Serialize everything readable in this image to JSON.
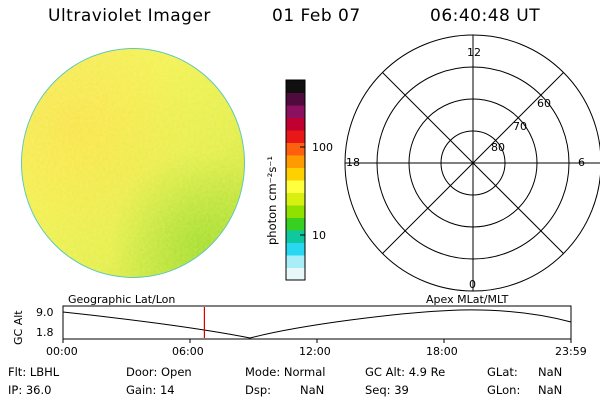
{
  "header": {
    "title": "Ultraviolet Imager",
    "date": "01 Feb 07",
    "time": "06:40:48 UT"
  },
  "colorbar": {
    "label": "photon cm⁻²s⁻¹",
    "tick_100": "100",
    "tick_10": "10",
    "colors": [
      "#101010",
      "#500a3c",
      "#8c1060",
      "#c00030",
      "#e81818",
      "#ff6010",
      "#ff9a00",
      "#ffd000",
      "#ffff40",
      "#d8f010",
      "#90e000",
      "#38d020",
      "#10c8a0",
      "#28d8f0",
      "#a8eef8",
      "#e8f8fa"
    ]
  },
  "polar_plot": {
    "mlt_labels": {
      "top": "12",
      "bottom": "0",
      "left": "18",
      "right": "6"
    },
    "lat_labels": {
      "outer": "60",
      "mid": "70",
      "inner": "80"
    }
  },
  "image_labels": {
    "left": "Geographic Lat/Lon",
    "right": "Apex MLat/MLT"
  },
  "altitude_plot": {
    "ylabel": "GC Alt",
    "ytick_top": "9.0",
    "ytick_bottom": "1.8",
    "xticks": [
      "00:00",
      "06:00",
      "12:00",
      "18:00",
      "23:59"
    ],
    "marker_time_hours": 6.68,
    "marker_color": "#dd0000"
  },
  "info": {
    "flt": "Flt: LBHL",
    "ip": "IP: 36.0",
    "door": "Door: Open",
    "gain": "Gain: 14",
    "mode": "Mode: Normal",
    "dsp": "Dsp:",
    "dsp_val": "NaN",
    "gcalt": "GC Alt: 4.9 Re",
    "seq": "Seq: 39",
    "glat": "GLat:",
    "glat_val": "NaN",
    "glon": "GLon:",
    "glon_val": "NaN"
  }
}
